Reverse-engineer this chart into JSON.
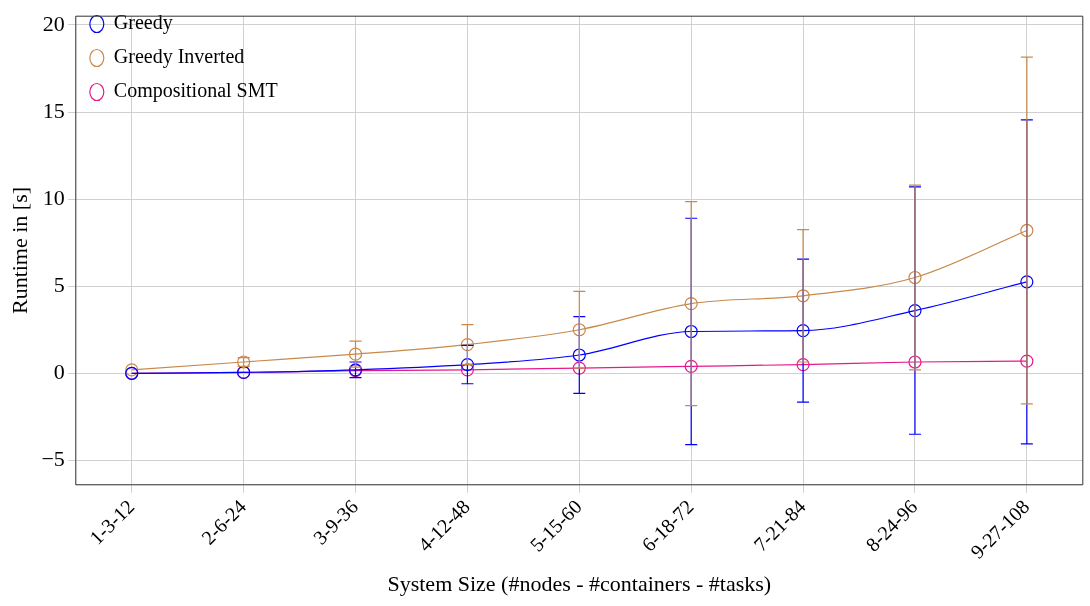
{
  "chart_data": {
    "type": "line",
    "xlabel": "System Size (#nodes - #containers - #tasks)",
    "ylabel": "Runtime in [s]",
    "categories": [
      "1-3-12",
      "2-6-24",
      "3-9-36",
      "4-12-48",
      "5-15-60",
      "6-18-72",
      "7-21-84",
      "8-24-96",
      "9-27-108"
    ],
    "series": [
      {
        "name": "Greedy",
        "color": "#0000ff",
        "values": [
          0,
          0.05,
          0.2,
          0.5,
          1.05,
          2.4,
          2.45,
          3.6,
          5.25
        ],
        "errors": [
          null,
          null,
          0.45,
          1.1,
          2.2,
          6.5,
          4.1,
          7.1,
          9.3
        ]
      },
      {
        "name": "Greedy Inverted",
        "color": "#c8894a",
        "values": [
          0.2,
          0.65,
          1.1,
          1.65,
          2.5,
          4.0,
          4.45,
          5.5,
          8.2
        ],
        "errors": [
          null,
          0.25,
          0.75,
          1.15,
          2.2,
          5.85,
          3.8,
          5.3,
          9.95
        ]
      },
      {
        "name": "Compositional SMT",
        "color": "#e6198c",
        "values": [
          0,
          0.05,
          0.15,
          0.2,
          0.3,
          0.4,
          0.5,
          0.65,
          0.7
        ]
      }
    ],
    "ylim": [
      -6.4,
      20.5
    ],
    "yticks": [
      {
        "value": -5,
        "label": "−5"
      },
      0,
      5,
      10,
      15,
      20
    ],
    "grid": true,
    "legend": "top left",
    "marker": "circle",
    "line_style": "solid"
  }
}
